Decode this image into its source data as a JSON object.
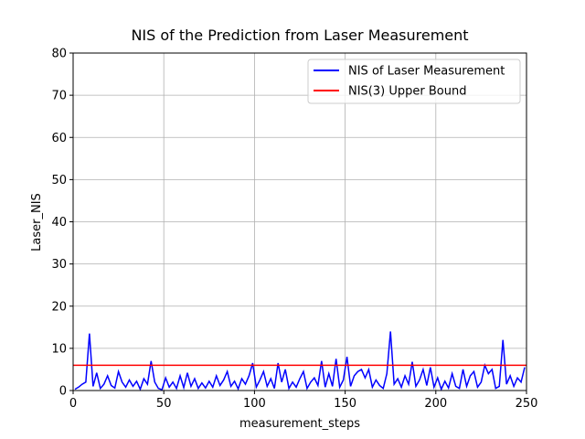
{
  "chart_data": {
    "type": "line",
    "title": "NIS of the Prediction from Laser Measurement",
    "x_label": "measurement_steps",
    "y_label": "Laser_NIS",
    "xlim": [
      0,
      250
    ],
    "ylim": [
      0,
      80
    ],
    "xticks": [
      0,
      50,
      100,
      150,
      200,
      250
    ],
    "yticks": [
      0,
      10,
      20,
      30,
      40,
      50,
      60,
      70,
      80
    ],
    "grid": true,
    "legend": "upper right",
    "series": [
      {
        "name": "NIS of Laser Measurement",
        "color": "#0000ff",
        "x": [
          1,
          3,
          5,
          7,
          9,
          11,
          13,
          15,
          17,
          19,
          21,
          23,
          25,
          27,
          29,
          31,
          33,
          35,
          37,
          39,
          41,
          43,
          45,
          47,
          49,
          51,
          53,
          55,
          57,
          59,
          61,
          63,
          65,
          67,
          69,
          71,
          73,
          75,
          77,
          79,
          81,
          83,
          85,
          87,
          89,
          91,
          93,
          95,
          97,
          99,
          101,
          103,
          105,
          107,
          109,
          111,
          113,
          115,
          117,
          119,
          121,
          123,
          125,
          127,
          129,
          131,
          133,
          135,
          137,
          139,
          141,
          143,
          145,
          147,
          149,
          151,
          153,
          155,
          157,
          159,
          161,
          163,
          165,
          167,
          169,
          171,
          173,
          175,
          177,
          179,
          181,
          183,
          185,
          187,
          189,
          191,
          193,
          195,
          197,
          199,
          201,
          203,
          205,
          207,
          209,
          211,
          213,
          215,
          217,
          219,
          221,
          223,
          225,
          227,
          229,
          231,
          233,
          235,
          237,
          239,
          241,
          243,
          245,
          247,
          249
        ],
        "values": [
          0.3,
          0.8,
          1.5,
          2.0,
          13.5,
          1.0,
          4.2,
          0.5,
          1.5,
          3.5,
          1.2,
          0.6,
          4.5,
          2.0,
          0.8,
          2.5,
          1.0,
          2.2,
          0.3,
          2.8,
          1.5,
          7.0,
          2.0,
          0.5,
          0.2,
          3.0,
          0.8,
          2.0,
          0.5,
          3.5,
          0.7,
          4.2,
          1.0,
          2.8,
          0.5,
          1.8,
          0.6,
          2.2,
          0.8,
          3.5,
          1.2,
          2.5,
          4.5,
          1.0,
          2.2,
          0.4,
          2.8,
          1.5,
          3.5,
          6.5,
          0.8,
          2.5,
          4.5,
          1.0,
          2.8,
          0.5,
          6.5,
          2.0,
          5.0,
          0.5,
          2.0,
          0.8,
          2.8,
          4.5,
          0.5,
          2.0,
          3.0,
          1.2,
          7.0,
          0.8,
          4.0,
          1.0,
          7.5,
          0.8,
          2.5,
          8.0,
          1.0,
          3.5,
          4.5,
          5.0,
          3.0,
          5.0,
          0.8,
          2.5,
          1.2,
          0.5,
          4.0,
          14.0,
          1.5,
          2.8,
          0.8,
          3.5,
          1.5,
          6.8,
          1.0,
          2.5,
          5.0,
          1.2,
          5.5,
          0.8,
          3.0,
          0.3,
          2.2,
          0.6,
          4.0,
          1.0,
          0.5,
          5.0,
          1.0,
          3.5,
          4.5,
          0.8,
          2.0,
          6.0,
          4.0,
          5.0,
          0.5,
          1.0,
          12.0,
          1.5,
          3.5,
          1.0,
          3.0,
          2.0,
          5.5
        ]
      },
      {
        "name": "NIS(3) Upper Bound",
        "color": "#ff0000",
        "x": [
          0,
          250
        ],
        "values": [
          5.991,
          5.991
        ]
      }
    ]
  }
}
